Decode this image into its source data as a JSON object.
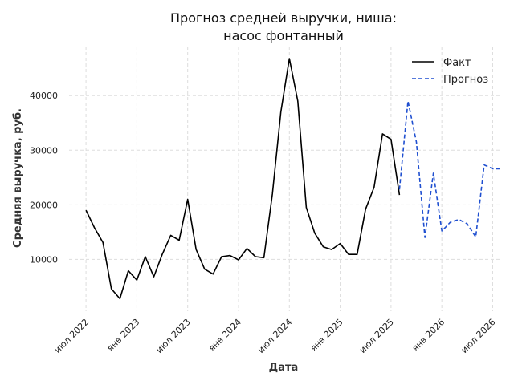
{
  "chart_data": {
    "type": "line",
    "title_lines": [
      "Прогноз средней выручки, ниша:",
      "насос фонтанный"
    ],
    "xlabel": "Дата",
    "ylabel": "Средняя выручка, руб.",
    "x_ticks": [
      "июл 2022",
      "янв 2023",
      "июл 2023",
      "янв 2024",
      "июл 2024",
      "янв 2025",
      "июл 2025",
      "янв 2026",
      "июл 2026"
    ],
    "y_ticks": [
      "10000",
      "20000",
      "30000",
      "40000"
    ],
    "x_range": [
      "2022-05-01",
      "2026-08-01"
    ],
    "ylim": [
      500,
      49000
    ],
    "grid": true,
    "legend_position": "top-right",
    "colors": {
      "fact": "#000000",
      "forecast": "#1f4fd0"
    },
    "series": [
      {
        "name": "Факт",
        "style": "solid",
        "x": [
          "2022-07",
          "2022-08",
          "2022-09",
          "2022-10",
          "2022-11",
          "2022-12",
          "2023-01",
          "2023-02",
          "2023-03",
          "2023-04",
          "2023-05",
          "2023-06",
          "2023-07",
          "2023-08",
          "2023-09",
          "2023-10",
          "2023-11",
          "2023-12",
          "2024-01",
          "2024-02",
          "2024-03",
          "2024-04",
          "2024-05",
          "2024-06",
          "2024-07",
          "2024-08",
          "2024-09",
          "2024-10",
          "2024-11",
          "2024-12",
          "2025-01",
          "2025-02",
          "2025-03",
          "2025-04",
          "2025-05",
          "2025-06",
          "2025-07",
          "2025-08"
        ],
        "values": [
          19000,
          15800,
          13100,
          4600,
          2800,
          7900,
          6200,
          10500,
          6800,
          10900,
          14400,
          13500,
          21000,
          11800,
          8200,
          7300,
          10500,
          10700,
          9900,
          12000,
          10500,
          10300,
          22000,
          37000,
          46800,
          39000,
          19500,
          14800,
          12300,
          11800,
          12900,
          10900,
          10900,
          19200,
          23200,
          33000,
          32000,
          21800
        ]
      },
      {
        "name": "Прогноз",
        "style": "dashed",
        "x": [
          "2025-08",
          "2025-09",
          "2025-10",
          "2025-11",
          "2025-12",
          "2026-01",
          "2026-02",
          "2026-03",
          "2026-04",
          "2026-05",
          "2026-06",
          "2026-07",
          "2026-08"
        ],
        "values": [
          22800,
          39000,
          31500,
          14000,
          25800,
          15200,
          16800,
          17300,
          16500,
          14100,
          27300,
          26600,
          26600
        ]
      }
    ]
  }
}
